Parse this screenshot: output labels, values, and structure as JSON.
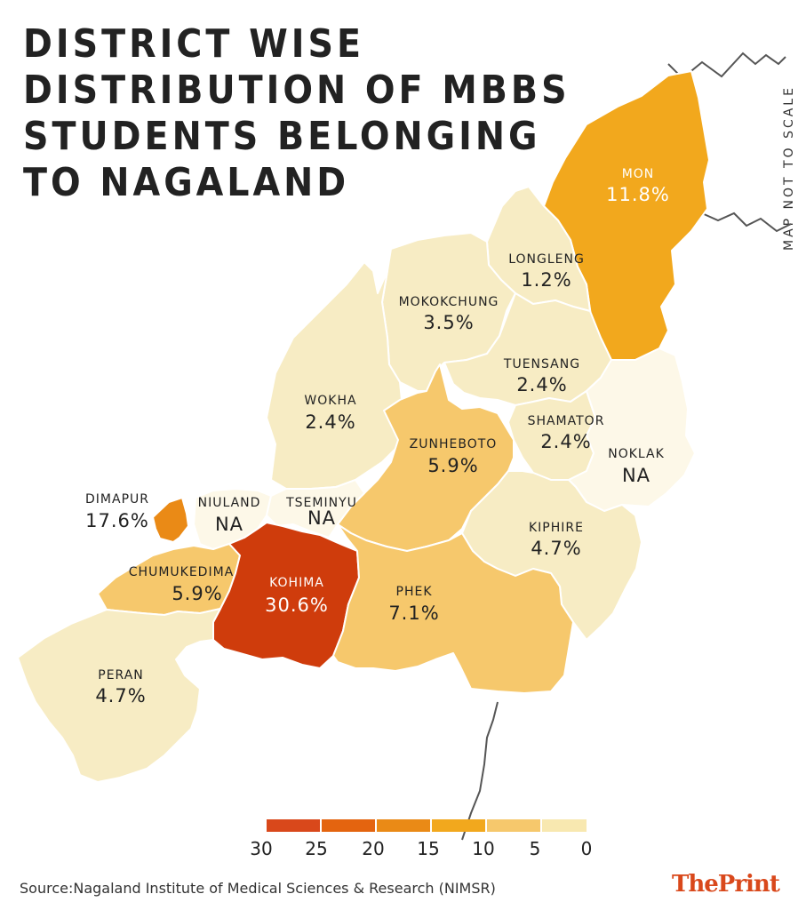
{
  "title": "DISTRICT WISE DISTRIBUTION OF MBBS STUDENTS BELONGING TO NAGALAND",
  "scale_note": "MAP NOT TO SCALE",
  "source": "Source:Nagaland Institute of Medical Sciences & Research (NIMSR)",
  "brand": {
    "part1": "The",
    "part2": "Print"
  },
  "colors": {
    "border": "#ffffff",
    "boundary_line": "#555555"
  },
  "districts": [
    {
      "name": "MON",
      "value": "11.8%",
      "pct": 11.8,
      "fill": "#f2a81d"
    },
    {
      "name": "LONGLENG",
      "value": "1.2%",
      "pct": 1.2,
      "fill": "#f7ecc4"
    },
    {
      "name": "MOKOKCHUNG",
      "value": "3.5%",
      "pct": 3.5,
      "fill": "#f7ecc4"
    },
    {
      "name": "TUENSANG",
      "value": "2.4%",
      "pct": 2.4,
      "fill": "#f7ecc4"
    },
    {
      "name": "WOKHA",
      "value": "2.4%",
      "pct": 2.4,
      "fill": "#f7ecc4"
    },
    {
      "name": "SHAMATOR",
      "value": "2.4%",
      "pct": 2.4,
      "fill": "#f7ecc4"
    },
    {
      "name": "NOKLAK",
      "value": "NA",
      "pct": null,
      "fill": "#fdf8e8"
    },
    {
      "name": "ZUNHEBOTO",
      "value": "5.9%",
      "pct": 5.9,
      "fill": "#f6c86c"
    },
    {
      "name": "DIMAPUR",
      "value": "17.6%",
      "pct": 17.6,
      "fill": "#ea8a16"
    },
    {
      "name": "NIULAND",
      "value": "NA",
      "pct": null,
      "fill": "#fdf8e8"
    },
    {
      "name": "TSEMINYU",
      "value": "NA",
      "pct": null,
      "fill": "#fdf8e8"
    },
    {
      "name": "KIPHIRE",
      "value": "4.7%",
      "pct": 4.7,
      "fill": "#f7ecc4"
    },
    {
      "name": "CHUMUKEDIMA",
      "value": "5.9%",
      "pct": 5.9,
      "fill": "#f6c86c"
    },
    {
      "name": "KOHIMA",
      "value": "30.6%",
      "pct": 30.6,
      "fill": "#cf3c0c"
    },
    {
      "name": "PHEK",
      "value": "7.1%",
      "pct": 7.1,
      "fill": "#f6c86c"
    },
    {
      "name": "PERAN",
      "value": "4.7%",
      "pct": 4.7,
      "fill": "#f7ecc4"
    }
  ],
  "legend": {
    "colors": [
      "#d9481b",
      "#e4640f",
      "#ea8a16",
      "#f2a81d",
      "#f6c86c",
      "#f8e8b0"
    ],
    "ticks": [
      "30",
      "25",
      "20",
      "15",
      "10",
      "5",
      "0"
    ]
  }
}
